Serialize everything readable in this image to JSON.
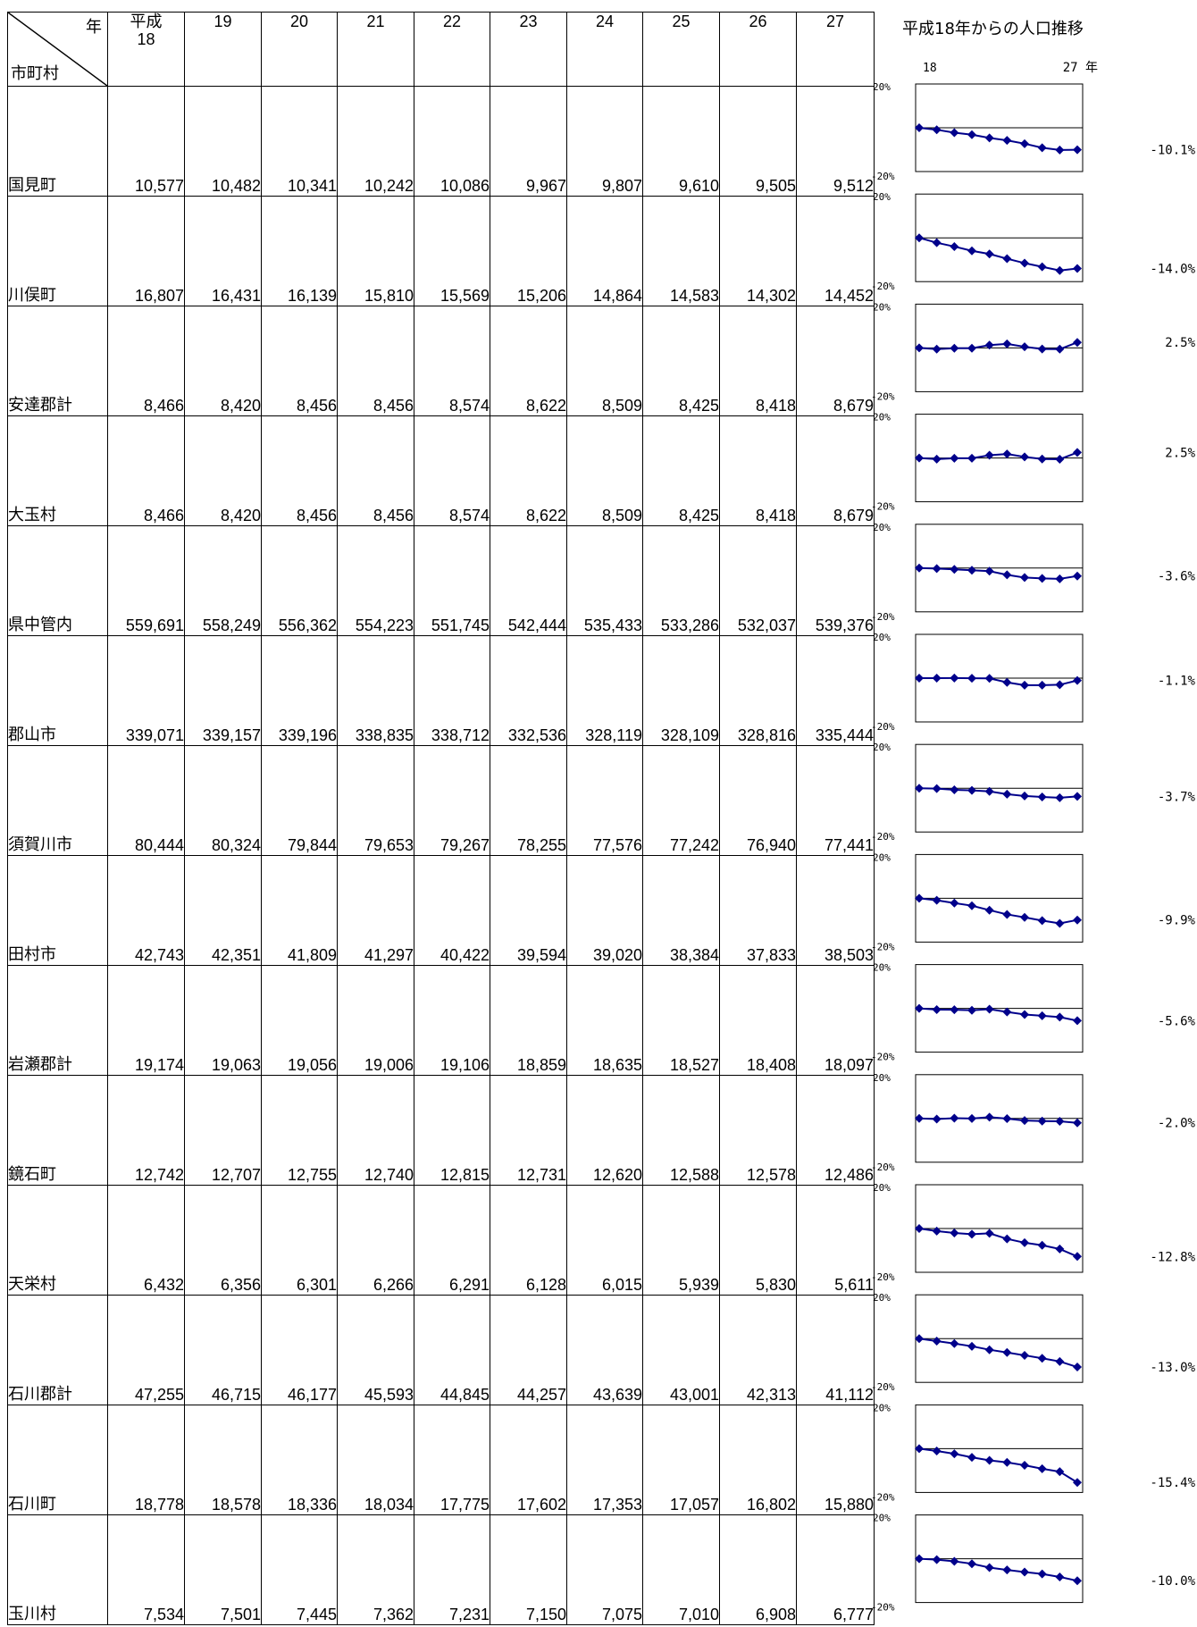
{
  "table": {
    "header": {
      "year_label": "年",
      "municipality_label": "市町村",
      "era_label": "平成",
      "years": [
        "18",
        "19",
        "20",
        "21",
        "22",
        "23",
        "24",
        "25",
        "26",
        "27"
      ]
    },
    "rows": [
      {
        "name": "国見町",
        "values": [
          "10,577",
          "10,482",
          "10,341",
          "10,242",
          "10,086",
          "9,967",
          "9,807",
          "9,610",
          "9,505",
          "9,512"
        ],
        "change": "-10.1%"
      },
      {
        "name": "川俣町",
        "values": [
          "16,807",
          "16,431",
          "16,139",
          "15,810",
          "15,569",
          "15,206",
          "14,864",
          "14,583",
          "14,302",
          "14,452"
        ],
        "change": "-14.0%"
      },
      {
        "name": "安達郡計",
        "values": [
          "8,466",
          "8,420",
          "8,456",
          "8,456",
          "8,574",
          "8,622",
          "8,509",
          "8,425",
          "8,418",
          "8,679"
        ],
        "change": "2.5%"
      },
      {
        "name": "大玉村",
        "values": [
          "8,466",
          "8,420",
          "8,456",
          "8,456",
          "8,574",
          "8,622",
          "8,509",
          "8,425",
          "8,418",
          "8,679"
        ],
        "change": "2.5%"
      },
      {
        "name": "県中管内",
        "values": [
          "559,691",
          "558,249",
          "556,362",
          "554,223",
          "551,745",
          "542,444",
          "535,433",
          "533,286",
          "532,037",
          "539,376"
        ],
        "change": "-3.6%"
      },
      {
        "name": "郡山市",
        "values": [
          "339,071",
          "339,157",
          "339,196",
          "338,835",
          "338,712",
          "332,536",
          "328,119",
          "328,109",
          "328,816",
          "335,444"
        ],
        "change": "-1.1%"
      },
      {
        "name": "須賀川市",
        "values": [
          "80,444",
          "80,324",
          "79,844",
          "79,653",
          "79,267",
          "78,255",
          "77,576",
          "77,242",
          "76,940",
          "77,441"
        ],
        "change": "-3.7%"
      },
      {
        "name": "田村市",
        "values": [
          "42,743",
          "42,351",
          "41,809",
          "41,297",
          "40,422",
          "39,594",
          "39,020",
          "38,384",
          "37,833",
          "38,503"
        ],
        "change": "-9.9%"
      },
      {
        "name": "岩瀬郡計",
        "values": [
          "19,174",
          "19,063",
          "19,056",
          "19,006",
          "19,106",
          "18,859",
          "18,635",
          "18,527",
          "18,408",
          "18,097"
        ],
        "change": "-5.6%"
      },
      {
        "name": "鏡石町",
        "values": [
          "12,742",
          "12,707",
          "12,755",
          "12,740",
          "12,815",
          "12,731",
          "12,620",
          "12,588",
          "12,578",
          "12,486"
        ],
        "change": "-2.0%"
      },
      {
        "name": "天栄村",
        "values": [
          "6,432",
          "6,356",
          "6,301",
          "6,266",
          "6,291",
          "6,128",
          "6,015",
          "5,939",
          "5,830",
          "5,611"
        ],
        "change": "-12.8%"
      },
      {
        "name": "石川郡計",
        "values": [
          "47,255",
          "46,715",
          "46,177",
          "45,593",
          "44,845",
          "44,257",
          "43,639",
          "43,001",
          "42,313",
          "41,112"
        ],
        "change": "-13.0%"
      },
      {
        "name": "石川町",
        "values": [
          "18,778",
          "18,578",
          "18,336",
          "18,034",
          "17,775",
          "17,602",
          "17,353",
          "17,057",
          "16,802",
          "15,880"
        ],
        "change": "-15.4%"
      },
      {
        "name": "玉川村",
        "values": [
          "7,534",
          "7,501",
          "7,445",
          "7,362",
          "7,231",
          "7,150",
          "7,075",
          "7,010",
          "6,908",
          "6,777"
        ],
        "change": "-10.0%"
      }
    ]
  },
  "chart_panel": {
    "title": "平成18年からの人口推移",
    "x_start_label": "18",
    "x_end_label": "27 年",
    "y_top_label": "20%",
    "y_bottom_label": "-20%",
    "line_color": "#00008b",
    "marker_color": "#00008b"
  },
  "chart_data": {
    "type": "line",
    "title": "平成18年からの人口推移",
    "x": [
      "18",
      "19",
      "20",
      "21",
      "22",
      "23",
      "24",
      "25",
      "26",
      "27"
    ],
    "ylim": [
      -20,
      20
    ],
    "y_unit": "% change from 平成18",
    "series_source": "table.rows[].values (percent change relative to 平成18)"
  }
}
